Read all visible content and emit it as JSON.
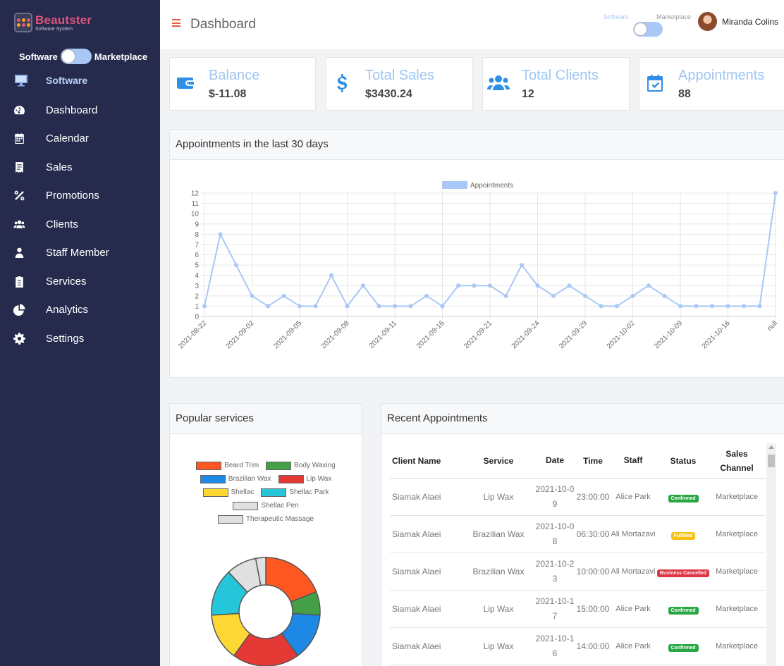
{
  "brand": {
    "title": "Beautster",
    "subtitle": "Software System"
  },
  "sidebar": {
    "toggle_left": "Software",
    "toggle_right": "Marketplace",
    "section": "Software",
    "items": [
      {
        "label": "Dashboard",
        "icon": "dashboard-gauge-icon"
      },
      {
        "label": "Calendar",
        "icon": "calendar-icon"
      },
      {
        "label": "Sales",
        "icon": "receipt-icon"
      },
      {
        "label": "Promotions",
        "icon": "percent-icon"
      },
      {
        "label": "Clients",
        "icon": "users-icon"
      },
      {
        "label": "Staff Member",
        "icon": "user-icon"
      },
      {
        "label": "Services",
        "icon": "clipboard-icon"
      },
      {
        "label": "Analytics",
        "icon": "pie-chart-icon"
      },
      {
        "label": "Settings",
        "icon": "gear-icon"
      }
    ]
  },
  "header": {
    "title": "Dashboard",
    "toggle_left": "Software",
    "toggle_right": "Marketplace",
    "user_name": "Miranda Colins"
  },
  "stats": [
    {
      "title": "Balance",
      "value": "$-11.08",
      "icon": "wallet-icon"
    },
    {
      "title": "Total Sales",
      "value": "$3430.24",
      "icon": "dollar-icon"
    },
    {
      "title": "Total Clients",
      "value": "12",
      "icon": "users-icon"
    },
    {
      "title": "Appointments",
      "value": "88",
      "icon": "calendar-check-icon"
    }
  ],
  "colors": {
    "accent": "#2d8fe6",
    "sidebar": "#262b4d",
    "line": "#9ec6f2",
    "brand": "#e0547a"
  },
  "appointments_panel": {
    "title": "Appointments in the last 30 days"
  },
  "chart_data": {
    "type": "line",
    "legend": [
      "Appointments"
    ],
    "legend_position": "top",
    "series": [
      {
        "name": "Appointments",
        "values": [
          1,
          8,
          5,
          2,
          1,
          2,
          1,
          1,
          4,
          1,
          3,
          1,
          1,
          1,
          2,
          1,
          3,
          3,
          3,
          2,
          5,
          3,
          2,
          3,
          2,
          1,
          1,
          2,
          3,
          2,
          1,
          1,
          1,
          1,
          1,
          1,
          12
        ]
      }
    ],
    "x_tick_labels": [
      "2021-08-22",
      "2021-09-02",
      "2021-09-05",
      "2021-09-08",
      "2021-09-11",
      "2021-09-16",
      "2021-09-21",
      "2021-09-24",
      "2021-09-29",
      "2021-10-02",
      "2021-10-09",
      "2021-10-16",
      "null"
    ],
    "y_ticks": [
      0,
      1,
      2,
      3,
      4,
      5,
      6,
      7,
      8,
      9,
      10,
      11,
      12
    ],
    "ylim": [
      0,
      12
    ],
    "grid": true
  },
  "popular_panel": {
    "title": "Popular services",
    "legend": [
      {
        "label": "Beard Trim",
        "color": "#ff5722"
      },
      {
        "label": "Body Waxing",
        "color": "#43a047"
      },
      {
        "label": "Brazilian Wax",
        "color": "#1e88e5"
      },
      {
        "label": "Lip Wax",
        "color": "#e53935"
      },
      {
        "label": "Shellac",
        "color": "#fdd835"
      },
      {
        "label": "Shellac Park",
        "color": "#26c6da"
      },
      {
        "label": "Shellac Pen",
        "color": "#e0e0e0"
      },
      {
        "label": "Therapeutic Massage",
        "color": "#e0e0e0"
      }
    ],
    "slices": [
      {
        "label": "Beard Trim",
        "value": 19,
        "color": "#ff5722"
      },
      {
        "label": "Body Waxing",
        "value": 7,
        "color": "#43a047"
      },
      {
        "label": "Brazilian Wax",
        "value": 14,
        "color": "#1e88e5"
      },
      {
        "label": "Lip Wax",
        "value": 20,
        "color": "#e53935"
      },
      {
        "label": "Shellac",
        "value": 14,
        "color": "#fdd835"
      },
      {
        "label": "Shellac Park",
        "value": 14,
        "color": "#26c6da"
      },
      {
        "label": "Shellac Pen",
        "value": 9,
        "color": "#e0e0e0"
      },
      {
        "label": "Therapeutic Massage",
        "value": 3,
        "color": "#e0e0e0"
      }
    ]
  },
  "recent_panel": {
    "title": "Recent Appointments",
    "columns": [
      "Client Name",
      "Service",
      "Date",
      "Time",
      "Staff",
      "Status",
      "Sales Channel"
    ],
    "rows": [
      {
        "client": "Siamak Alaei",
        "service": "Lip Wax",
        "date": "2021-10-09",
        "time": "23:00:00",
        "staff": "Alice Park",
        "status": "Confirmed",
        "status_color": "#28a745",
        "channel": "Marketplace"
      },
      {
        "client": "Siamak Alaei",
        "service": "Brazilian Wax",
        "date": "2021-10-08",
        "time": "06:30:00",
        "staff": "Ali Mortazavi",
        "status": "Fulfilled",
        "status_color": "#f5c211",
        "channel": "Marketplace"
      },
      {
        "client": "Siamak Alaei",
        "service": "Brazilian Wax",
        "date": "2021-10-23",
        "time": "10:00:00",
        "staff": "Ali Mortazavi",
        "status": "Business Cancelled",
        "status_color": "#dc3545",
        "channel": "Marketplace"
      },
      {
        "client": "Siamak Alaei",
        "service": "Lip Wax",
        "date": "2021-10-17",
        "time": "15:00:00",
        "staff": "Alice Park",
        "status": "Confirmed",
        "status_color": "#28a745",
        "channel": "Marketplace"
      },
      {
        "client": "Siamak Alaei",
        "service": "Lip Wax",
        "date": "2021-10-16",
        "time": "14:00:00",
        "staff": "Alice Park",
        "status": "Confirmed",
        "status_color": "#28a745",
        "channel": "Marketplace"
      }
    ]
  }
}
